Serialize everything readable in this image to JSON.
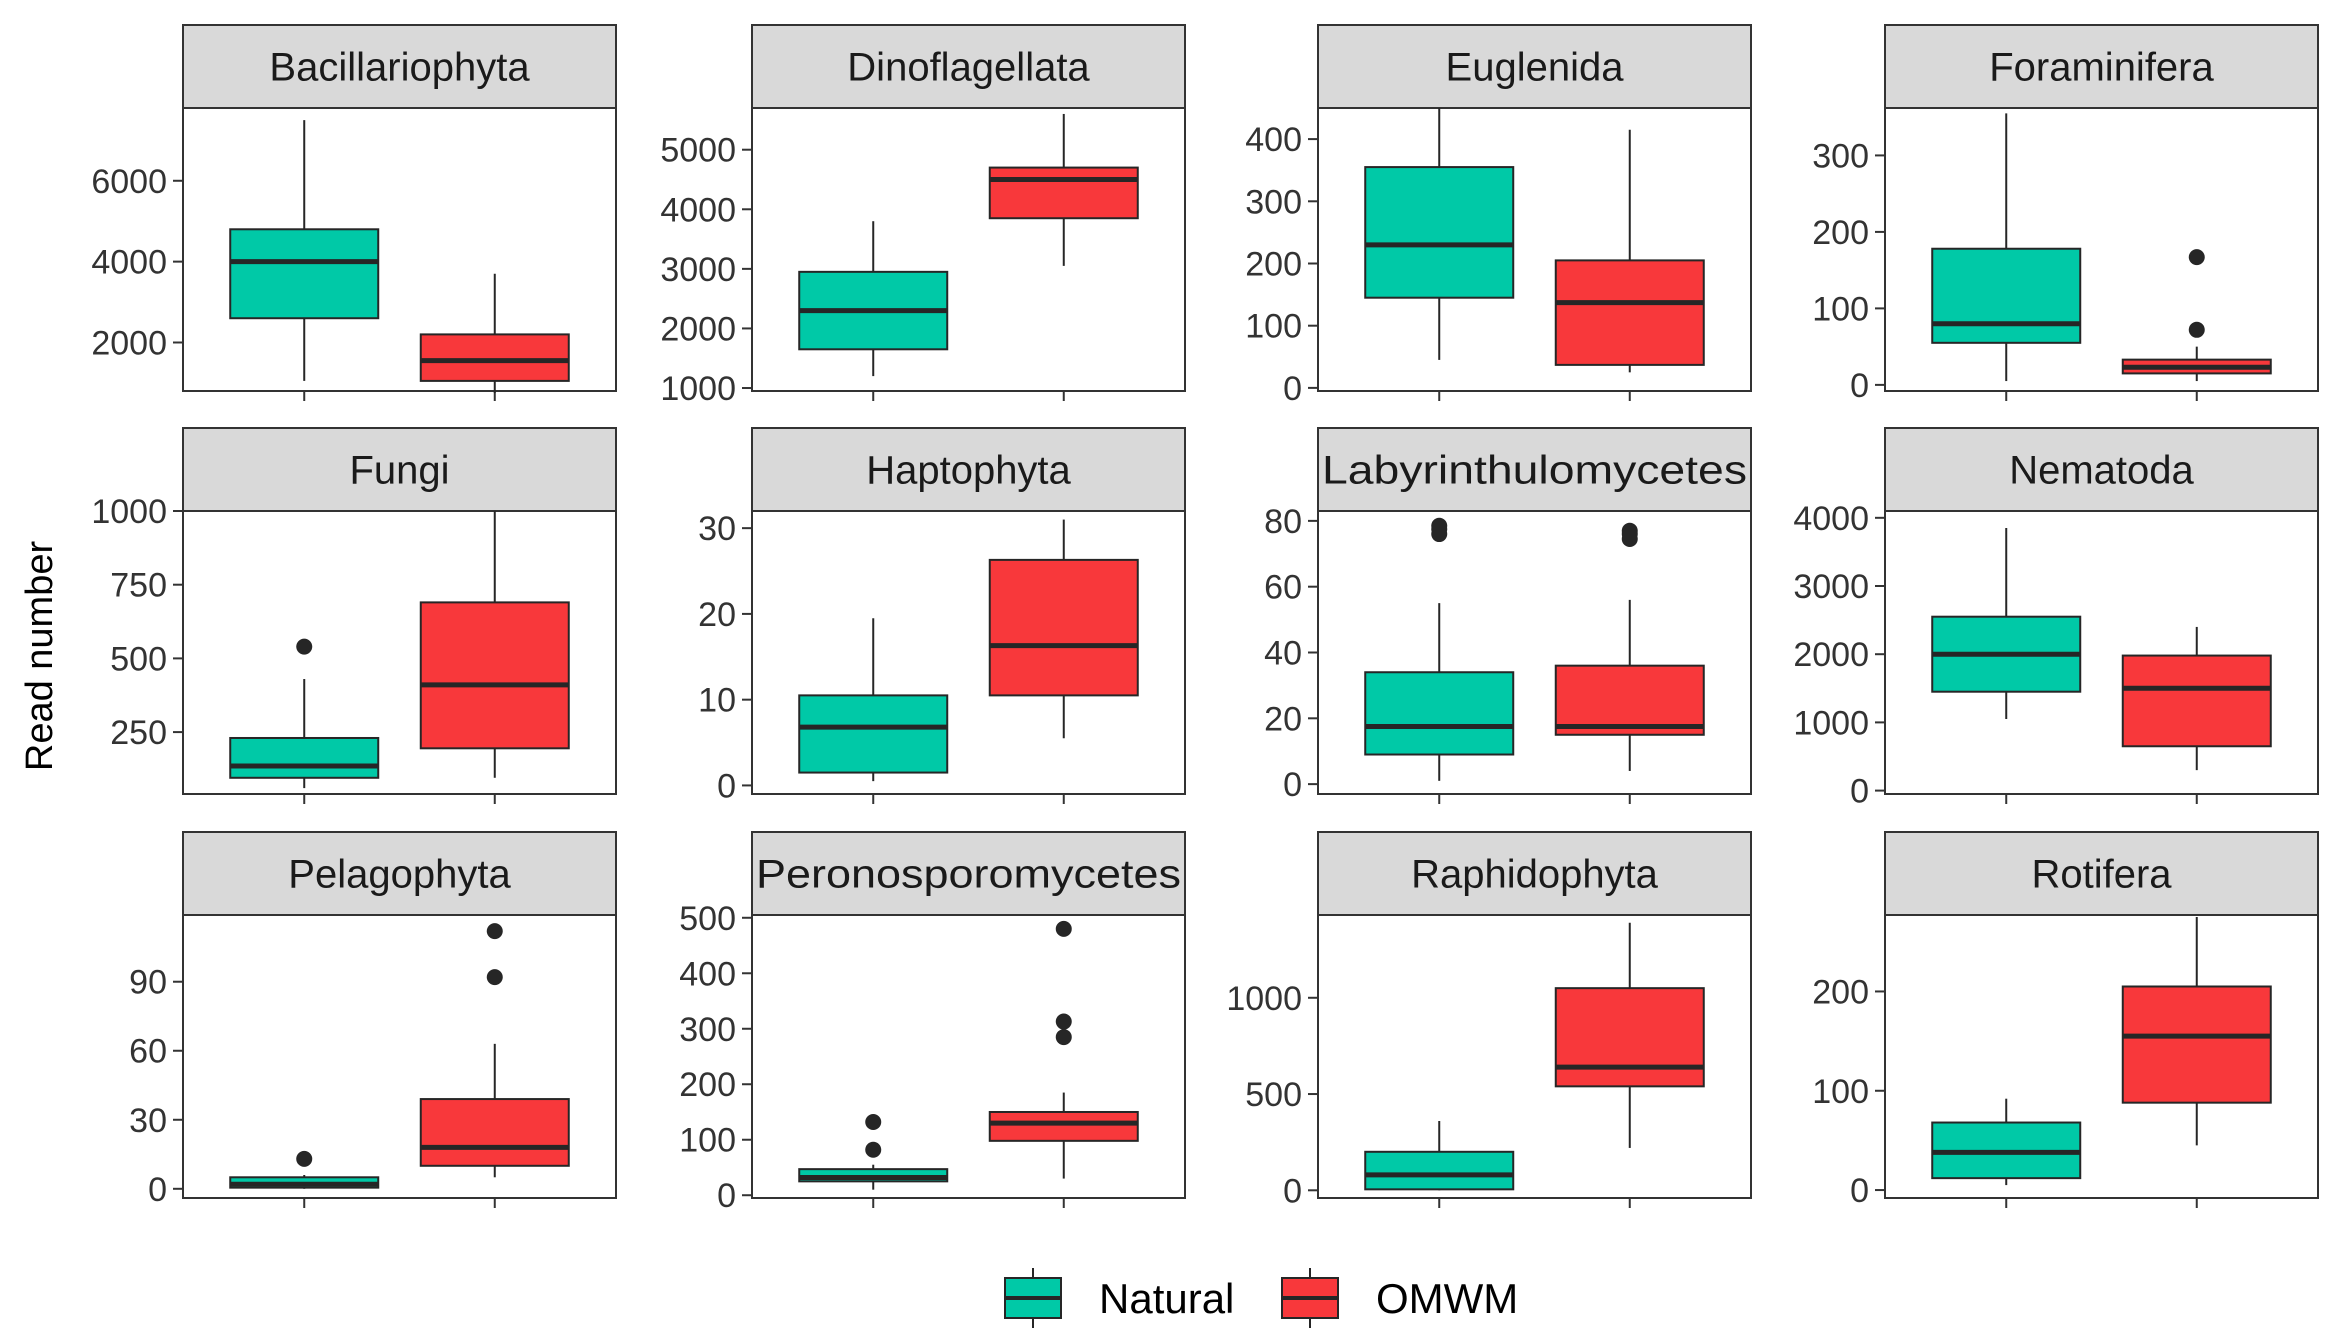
{
  "chart_data": {
    "type": "boxplot",
    "layout": "facet-grid",
    "ylabel": "Read number",
    "xlabel": "",
    "x_ticks_labeled": false,
    "groups": [
      "Natural",
      "OMWM"
    ],
    "colors": {
      "Natural": "#00C9A7",
      "OMWM": "#F8383B",
      "strip": "#D9D9D9",
      "median": "#262626",
      "frame": "#333333"
    },
    "legend": {
      "position": "bottom",
      "entries": [
        {
          "name": "Natural",
          "color": "#00C9A7"
        },
        {
          "name": "OMWM",
          "color": "#F8383B"
        }
      ]
    },
    "panels": [
      {
        "title": "Bacillariophyta",
        "ylim": [
          800,
          7800
        ],
        "yticks": [
          2000,
          4000,
          6000
        ],
        "tick_labels": [
          "2000",
          "4000",
          "6000"
        ],
        "boxes": [
          {
            "group": "Natural",
            "whisker_low": 1050,
            "q1": 2600,
            "median": 4000,
            "q3": 4800,
            "whisker_high": 7500,
            "outliers": []
          },
          {
            "group": "OMWM",
            "whisker_low": 750,
            "q1": 1050,
            "median": 1550,
            "q3": 2200,
            "whisker_high": 3700,
            "outliers": []
          }
        ]
      },
      {
        "title": "Dinoflagellata",
        "ylim": [
          950,
          5700
        ],
        "yticks": [
          1000,
          2000,
          3000,
          4000,
          5000
        ],
        "tick_labels": [
          "1000",
          "2000",
          "3000",
          "4000",
          "5000"
        ],
        "boxes": [
          {
            "group": "Natural",
            "whisker_low": 1200,
            "q1": 1650,
            "median": 2300,
            "q3": 2950,
            "whisker_high": 3800,
            "outliers": []
          },
          {
            "group": "OMWM",
            "whisker_low": 3050,
            "q1": 3850,
            "median": 4500,
            "q3": 4700,
            "whisker_high": 5600,
            "outliers": []
          }
        ]
      },
      {
        "title": "Euglenida",
        "ylim": [
          -5,
          450
        ],
        "yticks": [
          0,
          100,
          200,
          300,
          400
        ],
        "tick_labels": [
          "0",
          "100",
          "200",
          "300",
          "400"
        ],
        "boxes": [
          {
            "group": "Natural",
            "whisker_low": 45,
            "q1": 145,
            "median": 230,
            "q3": 355,
            "whisker_high": 450,
            "outliers": []
          },
          {
            "group": "OMWM",
            "whisker_low": 25,
            "q1": 37,
            "median": 137,
            "q3": 205,
            "whisker_high": 415,
            "outliers": []
          }
        ]
      },
      {
        "title": "Foraminifera",
        "ylim": [
          -8,
          362
        ],
        "yticks": [
          0,
          100,
          200,
          300
        ],
        "tick_labels": [
          "0",
          "100",
          "200",
          "300"
        ],
        "boxes": [
          {
            "group": "Natural",
            "whisker_low": 5,
            "q1": 55,
            "median": 80,
            "q3": 178,
            "whisker_high": 355,
            "outliers": []
          },
          {
            "group": "OMWM",
            "whisker_low": 5,
            "q1": 15,
            "median": 23,
            "q3": 33,
            "whisker_high": 50,
            "outliers": [
              72,
              167
            ]
          }
        ]
      },
      {
        "title": "Fungi",
        "ylim": [
          40,
          1000
        ],
        "yticks": [
          250,
          500,
          750,
          1000
        ],
        "tick_labels": [
          "250",
          "500",
          "750",
          "1000"
        ],
        "boxes": [
          {
            "group": "Natural",
            "whisker_low": 60,
            "q1": 95,
            "median": 135,
            "q3": 230,
            "whisker_high": 430,
            "outliers": [
              540
            ]
          },
          {
            "group": "OMWM",
            "whisker_low": 95,
            "q1": 195,
            "median": 410,
            "q3": 690,
            "whisker_high": 1000,
            "outliers": []
          }
        ]
      },
      {
        "title": "Haptophyta",
        "ylim": [
          -1,
          32
        ],
        "yticks": [
          0,
          10,
          20,
          30
        ],
        "tick_labels": [
          "0",
          "10",
          "20",
          "30"
        ],
        "boxes": [
          {
            "group": "Natural",
            "whisker_low": 0.5,
            "q1": 1.5,
            "median": 6.8,
            "q3": 10.5,
            "whisker_high": 19.5,
            "outliers": []
          },
          {
            "group": "OMWM",
            "whisker_low": 5.5,
            "q1": 10.5,
            "median": 16.3,
            "q3": 26.3,
            "whisker_high": 31,
            "outliers": []
          }
        ]
      },
      {
        "title": "Labyrinthulomycetes",
        "ylim": [
          -3,
          83
        ],
        "yticks": [
          0,
          20,
          40,
          60,
          80
        ],
        "tick_labels": [
          "0",
          "20",
          "40",
          "60",
          "80"
        ],
        "boxes": [
          {
            "group": "Natural",
            "whisker_low": 1,
            "q1": 9,
            "median": 17.5,
            "q3": 34,
            "whisker_high": 55,
            "outliers": [
              76,
              77.5,
              78.5
            ]
          },
          {
            "group": "OMWM",
            "whisker_low": 4,
            "q1": 15,
            "median": 17.5,
            "q3": 36,
            "whisker_high": 56,
            "outliers": [
              74.5,
              76,
              77
            ]
          }
        ]
      },
      {
        "title": "Nematoda",
        "ylim": [
          -50,
          4100
        ],
        "yticks": [
          0,
          1000,
          2000,
          3000,
          4000
        ],
        "tick_labels": [
          "0",
          "1000",
          "2000",
          "3000",
          "4000"
        ],
        "boxes": [
          {
            "group": "Natural",
            "whisker_low": 1050,
            "q1": 1450,
            "median": 2000,
            "q3": 2550,
            "whisker_high": 3850,
            "outliers": []
          },
          {
            "group": "OMWM",
            "whisker_low": 300,
            "q1": 650,
            "median": 1500,
            "q3": 1980,
            "whisker_high": 2400,
            "outliers": []
          }
        ]
      },
      {
        "title": "Pelagophyta",
        "ylim": [
          -4,
          119
        ],
        "yticks": [
          0,
          30,
          60,
          90
        ],
        "tick_labels": [
          "0",
          "30",
          "60",
          "90"
        ],
        "boxes": [
          {
            "group": "Natural",
            "whisker_low": 0,
            "q1": 0.5,
            "median": 2,
            "q3": 5,
            "whisker_high": 6,
            "outliers": [
              13
            ]
          },
          {
            "group": "OMWM",
            "whisker_low": 5,
            "q1": 10,
            "median": 18,
            "q3": 39,
            "whisker_high": 63,
            "outliers": [
              92,
              112
            ]
          }
        ]
      },
      {
        "title": "Peronosporomycetes",
        "ylim": [
          -5,
          505
        ],
        "yticks": [
          0,
          100,
          200,
          300,
          400,
          500
        ],
        "tick_labels": [
          "0",
          "100",
          "200",
          "300",
          "400",
          "500"
        ],
        "boxes": [
          {
            "group": "Natural",
            "whisker_low": 10,
            "q1": 25,
            "median": 32,
            "q3": 47,
            "whisker_high": 55,
            "outliers": [
              82,
              132
            ]
          },
          {
            "group": "OMWM",
            "whisker_low": 30,
            "q1": 98,
            "median": 130,
            "q3": 150,
            "whisker_high": 185,
            "outliers": [
              285,
              313,
              480
            ]
          }
        ]
      },
      {
        "title": "Raphidophyta",
        "ylim": [
          -40,
          1430
        ],
        "yticks": [
          0,
          500,
          1000
        ],
        "tick_labels": [
          "0",
          "500",
          "1000"
        ],
        "boxes": [
          {
            "group": "Natural",
            "whisker_low": 0,
            "q1": 5,
            "median": 80,
            "q3": 200,
            "whisker_high": 360,
            "outliers": []
          },
          {
            "group": "OMWM",
            "whisker_low": 220,
            "q1": 540,
            "median": 640,
            "q3": 1050,
            "whisker_high": 1390,
            "outliers": []
          }
        ]
      },
      {
        "title": "Rotifera",
        "ylim": [
          -8,
          277
        ],
        "yticks": [
          0,
          100,
          200
        ],
        "tick_labels": [
          "0",
          "100",
          "200"
        ],
        "boxes": [
          {
            "group": "Natural",
            "whisker_low": 5,
            "q1": 12,
            "median": 38,
            "q3": 68,
            "whisker_high": 92,
            "outliers": []
          },
          {
            "group": "OMWM",
            "whisker_low": 45,
            "q1": 88,
            "median": 155,
            "q3": 205,
            "whisker_high": 275,
            "outliers": []
          }
        ]
      }
    ]
  }
}
